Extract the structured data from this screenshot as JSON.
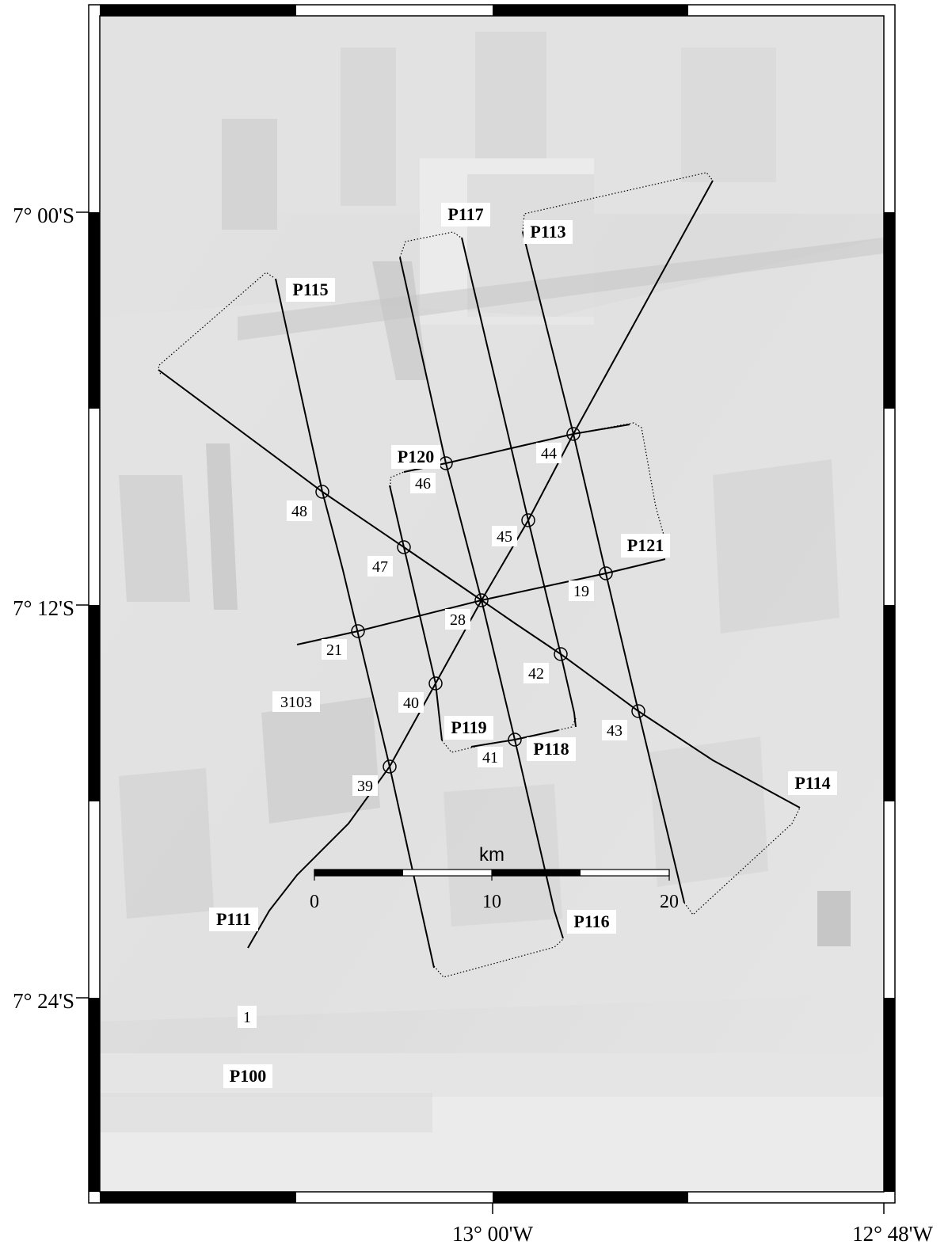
{
  "map": {
    "lat_labels": [
      "7° 00'S",
      "7° 12'S",
      "7° 24'S"
    ],
    "lon_labels": [
      "13° 00'W",
      "12° 48'W"
    ],
    "scale_bar": {
      "unit": "km",
      "ticks": [
        "0",
        "10",
        "20"
      ]
    }
  },
  "profiles": {
    "P100": "P100",
    "P111": "P111",
    "P113": "P113",
    "P114": "P114",
    "P115": "P115",
    "P116": "P116",
    "P117": "P117",
    "P118": "P118",
    "P119": "P119",
    "P120": "P120",
    "P121": "P121"
  },
  "crossings": [
    "19",
    "21",
    "28",
    "39",
    "40",
    "41",
    "42",
    "43",
    "44",
    "45",
    "46",
    "47",
    "48"
  ],
  "other_labels": {
    "station_3103": "3103",
    "point_1": "1"
  }
}
